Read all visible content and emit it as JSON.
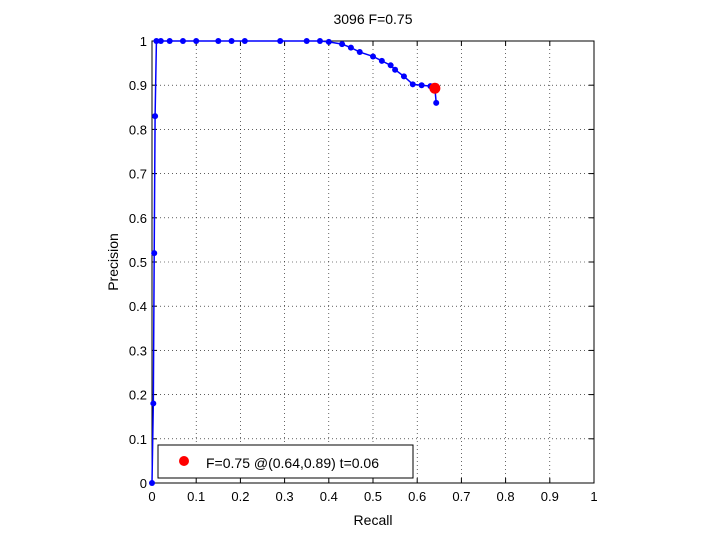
{
  "chart_data": {
    "type": "line",
    "title": "3096 F=0.75",
    "xlabel": "Recall",
    "ylabel": "Precision",
    "xlim": [
      0,
      1
    ],
    "ylim": [
      0,
      1
    ],
    "grid": true,
    "xticks": [
      "0",
      "0.1",
      "0.2",
      "0.3",
      "0.4",
      "0.5",
      "0.6",
      "0.7",
      "0.8",
      "0.9",
      "1"
    ],
    "yticks": [
      "0",
      "0.1",
      "0.2",
      "0.3",
      "0.4",
      "0.5",
      "0.6",
      "0.7",
      "0.8",
      "0.9",
      "1"
    ],
    "series": [
      {
        "color": "#0000ff",
        "x": [
          0.0,
          0.003,
          0.005,
          0.007,
          0.01,
          0.02,
          0.04,
          0.07,
          0.1,
          0.15,
          0.18,
          0.21,
          0.29,
          0.35,
          0.38,
          0.4,
          0.43,
          0.45,
          0.47,
          0.5,
          0.52,
          0.54,
          0.55,
          0.57,
          0.59,
          0.61,
          0.63,
          0.64,
          0.643
        ],
        "y": [
          0.0,
          0.18,
          0.52,
          0.83,
          1.0,
          1.0,
          1.0,
          1.0,
          1.0,
          1.0,
          1.0,
          1.0,
          1.0,
          1.0,
          1.0,
          0.998,
          0.993,
          0.985,
          0.975,
          0.965,
          0.955,
          0.945,
          0.935,
          0.92,
          0.902,
          0.9,
          0.898,
          0.893,
          0.86
        ]
      }
    ],
    "best_point": {
      "x": 0.64,
      "y": 0.893,
      "color": "#ff0000"
    },
    "legend": {
      "placement": "bottom-left",
      "text": "F=0.75 @(0.64,0.89) t=0.06"
    }
  }
}
